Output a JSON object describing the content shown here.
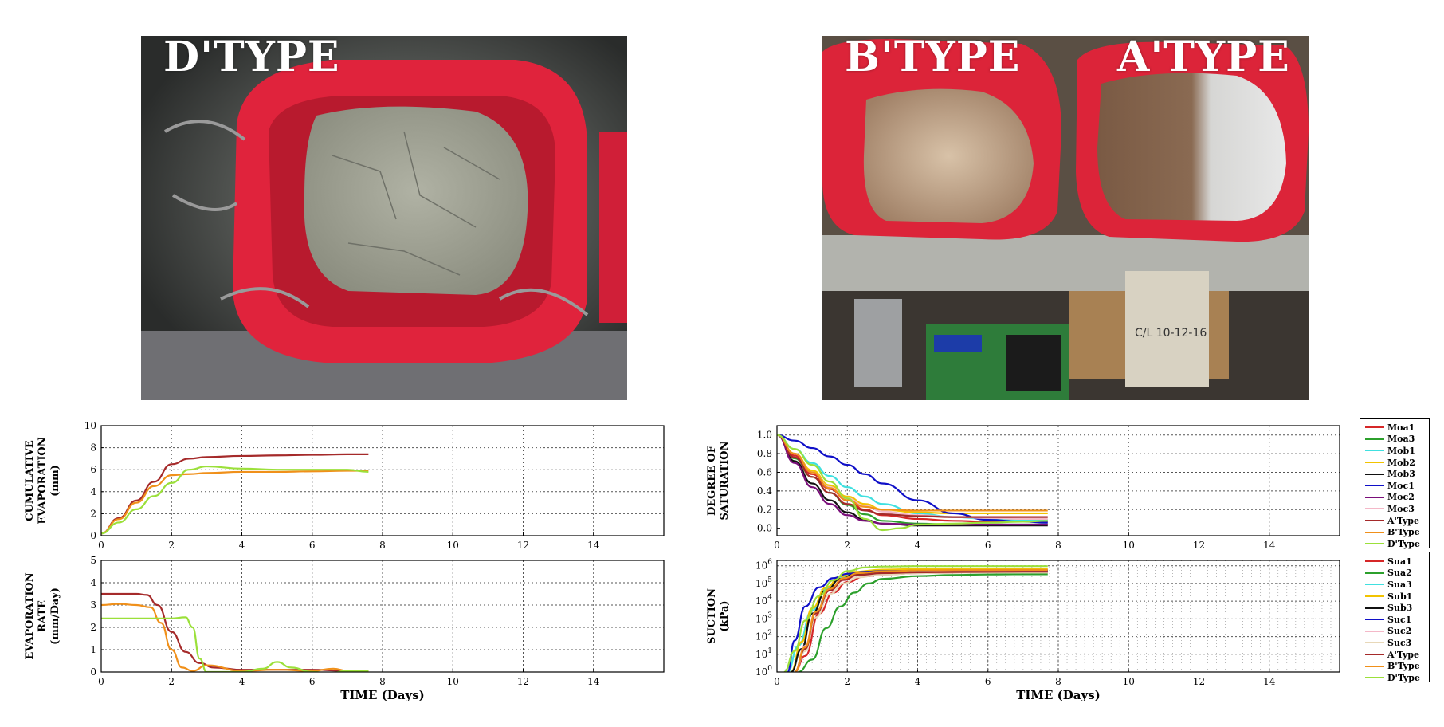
{
  "photos": {
    "left_title": "D'TYPE",
    "right_title_b": "B'TYPE",
    "right_title_a": "A'TYPE",
    "label_text": "C/L  10-12-16"
  },
  "colors": {
    "Moa1": "#d62728",
    "Moa3": "#2ca02c",
    "Mob1": "#40e0e0",
    "Mob2": "#f2c300",
    "Mob3": "#111111",
    "Moc1": "#1010c8",
    "Moc2": "#7a0e7a",
    "Moc3": "#f4b8c8",
    "AType": "#a52a2a",
    "BType": "#f0901a",
    "DType": "#9be03a",
    "Sua1": "#d62728",
    "Sua2": "#2ca02c",
    "Sua3": "#40e0e0",
    "Sub1": "#f2c300",
    "Sub3": "#111111",
    "Suc1": "#1010c8",
    "Suc2": "#f4b8c8",
    "Suc3": "#e8d8b8"
  },
  "chart_data": [
    {
      "id": "cumulative",
      "type": "line",
      "ylabel": [
        "CUMULATIVE",
        "EVAPORATION",
        "(mm)"
      ],
      "xlabel": "",
      "xlim": [
        0,
        16
      ],
      "ylim": [
        0,
        10
      ],
      "xticks": [
        "0",
        "2",
        "4",
        "6",
        "8",
        "10",
        "12",
        "14"
      ],
      "yticks": [
        "0",
        "2",
        "4",
        "6",
        "8",
        "10"
      ],
      "series": [
        {
          "key": "AType",
          "x": [
            0,
            0.5,
            1,
            1.5,
            2,
            2.5,
            3,
            4,
            5,
            6,
            7,
            7.6
          ],
          "y": [
            0.2,
            1.6,
            3.2,
            4.9,
            6.5,
            7.0,
            7.15,
            7.25,
            7.3,
            7.35,
            7.4,
            7.4
          ]
        },
        {
          "key": "BType",
          "x": [
            0,
            0.5,
            1,
            1.5,
            2,
            2.5,
            3,
            4,
            5,
            6,
            7,
            7.6
          ],
          "y": [
            0.2,
            1.5,
            3.0,
            4.5,
            5.5,
            5.6,
            5.7,
            5.8,
            5.8,
            5.85,
            5.9,
            5.9
          ]
        },
        {
          "key": "DType",
          "x": [
            0,
            0.5,
            1,
            1.5,
            2,
            2.5,
            3,
            4,
            5,
            6,
            7,
            7.6
          ],
          "y": [
            0.2,
            1.2,
            2.4,
            3.6,
            4.8,
            6.0,
            6.3,
            6.1,
            6.0,
            6.0,
            6.0,
            5.8
          ]
        }
      ]
    },
    {
      "id": "rate",
      "type": "line",
      "ylabel": [
        "EVAPORATION",
        "RATE",
        "(mm/Day)"
      ],
      "xlabel": "TIME (Days)",
      "xlim": [
        0,
        16
      ],
      "ylim": [
        0,
        5
      ],
      "xticks": [
        "0",
        "2",
        "4",
        "6",
        "8",
        "10",
        "12",
        "14"
      ],
      "yticks": [
        "0",
        "1",
        "2",
        "3",
        "4",
        "5"
      ],
      "series": [
        {
          "key": "AType",
          "x": [
            0,
            0.5,
            1,
            1.3,
            1.6,
            2,
            2.4,
            2.8,
            3.2,
            4,
            5,
            6,
            7,
            7.6
          ],
          "y": [
            3.5,
            3.5,
            3.5,
            3.45,
            3.0,
            1.8,
            0.9,
            0.4,
            0.2,
            0.1,
            0.1,
            0.1,
            0.05,
            0.05
          ]
        },
        {
          "key": "BType",
          "x": [
            0,
            0.5,
            1,
            1.4,
            1.7,
            2,
            2.3,
            2.6,
            3.0,
            4,
            5,
            6,
            6.6,
            7,
            7.6
          ],
          "y": [
            3.0,
            3.05,
            3.0,
            2.9,
            2.2,
            1.0,
            0.2,
            0.05,
            0.3,
            0.05,
            0.1,
            0.05,
            0.15,
            0.05,
            0.05
          ]
        },
        {
          "key": "DType",
          "x": [
            0,
            0.5,
            1,
            1.5,
            2,
            2.4,
            2.6,
            2.8,
            3.0,
            4,
            4.6,
            5,
            5.4,
            6,
            6.5,
            7,
            7.6
          ],
          "y": [
            2.4,
            2.4,
            2.4,
            2.4,
            2.4,
            2.45,
            2.0,
            0.6,
            0.0,
            0.0,
            0.15,
            0.45,
            0.2,
            0.0,
            -0.05,
            0.05,
            0.05
          ]
        }
      ]
    },
    {
      "id": "saturation",
      "type": "line",
      "ylabel": [
        "DEGREE OF",
        "SATURATION"
      ],
      "xlabel": "",
      "xlim": [
        0,
        16
      ],
      "ylim": [
        -0.08,
        1.1
      ],
      "xticks": [
        "0",
        "2",
        "4",
        "6",
        "8",
        "10",
        "12",
        "14"
      ],
      "yticks": [
        "0.0",
        "0.2",
        "0.4",
        "0.6",
        "0.8",
        "1.0"
      ],
      "ytick_values": [
        0,
        0.2,
        0.4,
        0.6,
        0.8,
        1.0
      ],
      "legend": [
        "Moa1",
        "Moa3",
        "Mob1",
        "Mob2",
        "Mob3",
        "Moc1",
        "Moc2",
        "Moc3",
        "A'Type",
        "B'Type",
        "D'Type"
      ],
      "legend_keys": [
        "Moa1",
        "Moa3",
        "Mob1",
        "Mob2",
        "Mob3",
        "Moc1",
        "Moc2",
        "Moc3",
        "AType",
        "BType",
        "DType"
      ],
      "series": [
        {
          "key": "Moa1",
          "x": [
            0,
            0.5,
            1,
            1.5,
            2,
            2.5,
            3,
            4,
            5,
            6,
            7,
            7.7
          ],
          "y": [
            1.0,
            0.78,
            0.58,
            0.42,
            0.3,
            0.2,
            0.14,
            0.1,
            0.08,
            0.07,
            0.07,
            0.07
          ]
        },
        {
          "key": "Moa3",
          "x": [
            0,
            0.5,
            1,
            1.5,
            2,
            2.5,
            3,
            4,
            5,
            6,
            7,
            7.7
          ],
          "y": [
            1.0,
            0.75,
            0.55,
            0.38,
            0.25,
            0.15,
            0.08,
            0.05,
            0.04,
            0.04,
            0.04,
            0.04
          ]
        },
        {
          "key": "Mob1",
          "x": [
            0,
            0.5,
            1,
            1.5,
            2,
            2.5,
            3,
            4,
            5,
            6,
            7,
            7.7
          ],
          "y": [
            1.0,
            0.85,
            0.7,
            0.56,
            0.44,
            0.34,
            0.26,
            0.16,
            0.12,
            0.1,
            0.09,
            0.09
          ]
        },
        {
          "key": "Mob2",
          "x": [
            0,
            0.5,
            1,
            1.5,
            2,
            2.5,
            3,
            4,
            5,
            6,
            7,
            7.7
          ],
          "y": [
            1.0,
            0.8,
            0.62,
            0.46,
            0.34,
            0.26,
            0.2,
            0.17,
            0.16,
            0.16,
            0.16,
            0.16
          ]
        },
        {
          "key": "Mob3",
          "x": [
            0,
            0.5,
            1,
            1.5,
            2,
            2.5,
            3,
            4,
            5,
            6,
            7,
            7.7
          ],
          "y": [
            1.0,
            0.72,
            0.48,
            0.3,
            0.17,
            0.09,
            0.05,
            0.03,
            0.03,
            0.03,
            0.03,
            0.03
          ]
        },
        {
          "key": "Moc1",
          "x": [
            0,
            0.5,
            1,
            1.5,
            2,
            2.5,
            3,
            4,
            5,
            6,
            7,
            7.7
          ],
          "y": [
            1.0,
            0.94,
            0.86,
            0.77,
            0.68,
            0.58,
            0.48,
            0.3,
            0.16,
            0.09,
            0.07,
            0.06
          ]
        },
        {
          "key": "Moc2",
          "x": [
            0,
            0.5,
            1,
            1.5,
            2,
            2.5,
            3,
            4,
            5,
            6,
            7,
            7.7
          ],
          "y": [
            1.0,
            0.7,
            0.44,
            0.26,
            0.14,
            0.08,
            0.05,
            0.04,
            0.04,
            0.04,
            0.04,
            0.04
          ]
        },
        {
          "key": "Moc3",
          "x": [
            0,
            0.5,
            1,
            1.5,
            2,
            2.5,
            3,
            4,
            5,
            6,
            7,
            7.7
          ],
          "y": [
            1.0,
            0.8,
            0.6,
            0.44,
            0.32,
            0.24,
            0.18,
            0.14,
            0.12,
            0.11,
            0.1,
            0.1
          ]
        },
        {
          "key": "AType",
          "x": [
            0,
            0.5,
            1,
            1.5,
            2,
            2.5,
            3,
            4,
            5,
            6,
            7,
            7.7
          ],
          "y": [
            1.0,
            0.76,
            0.55,
            0.38,
            0.26,
            0.19,
            0.15,
            0.13,
            0.12,
            0.12,
            0.12,
            0.12
          ]
        },
        {
          "key": "BType",
          "x": [
            0,
            0.5,
            1,
            1.5,
            2,
            2.5,
            3,
            4,
            5,
            6,
            7,
            7.7
          ],
          "y": [
            1.0,
            0.8,
            0.6,
            0.43,
            0.3,
            0.23,
            0.2,
            0.19,
            0.19,
            0.19,
            0.19,
            0.19
          ]
        },
        {
          "key": "DType",
          "x": [
            0,
            0.5,
            1,
            1.5,
            2,
            2.5,
            3,
            3.5,
            4,
            5,
            6,
            7,
            7.7
          ],
          "y": [
            1.0,
            0.85,
            0.68,
            0.5,
            0.32,
            0.1,
            -0.02,
            0.0,
            0.04,
            0.05,
            0.06,
            0.07,
            0.08
          ]
        }
      ]
    },
    {
      "id": "suction",
      "type": "line",
      "yscale": "log",
      "ylabel": [
        "SUCTION",
        "(kPa)"
      ],
      "xlabel": "TIME (Days)",
      "xlim": [
        0,
        16
      ],
      "ylim": [
        1,
        2000000
      ],
      "xticks": [
        "0",
        "2",
        "4",
        "6",
        "8",
        "10",
        "12",
        "14"
      ],
      "yticks": [
        "10",
        "10",
        "10",
        "10",
        "10",
        "10",
        "10"
      ],
      "ytick_exponents": [
        "0",
        "1",
        "2",
        "3",
        "4",
        "5",
        "6"
      ],
      "legend": [
        "Sua1",
        "Sua2",
        "Sua3",
        "Sub1",
        "Sub3",
        "Suc1",
        "Suc2",
        "Suc3",
        "A'Type",
        "B'Type",
        "D'Type"
      ],
      "legend_keys": [
        "Sua1",
        "Sua2",
        "Sua3",
        "Sub1",
        "Sub3",
        "Suc1",
        "Suc2",
        "Suc3",
        "AType",
        "BType",
        "DType"
      ],
      "series": [
        {
          "key": "Sua1",
          "x": [
            0.5,
            0.8,
            1.2,
            1.6,
            2,
            2.5,
            3,
            4,
            5,
            6,
            7,
            7.7
          ],
          "y": [
            1,
            8,
            2000,
            30000,
            120000,
            250000,
            320000,
            380000,
            400000,
            420000,
            430000,
            430000
          ]
        },
        {
          "key": "Sua2",
          "x": [
            0.6,
            1,
            1.4,
            1.8,
            2.2,
            2.6,
            3,
            4,
            5,
            6,
            7,
            7.7
          ],
          "y": [
            1,
            5,
            300,
            5000,
            30000,
            100000,
            180000,
            260000,
            300000,
            320000,
            330000,
            330000
          ]
        },
        {
          "key": "Sua3",
          "x": [
            0.3,
            0.6,
            1,
            1.4,
            1.8,
            2.2,
            3,
            4,
            5,
            6,
            7,
            7.7
          ],
          "y": [
            1,
            30,
            3000,
            50000,
            200000,
            350000,
            450000,
            500000,
            520000,
            530000,
            540000,
            540000
          ]
        },
        {
          "key": "Sub1",
          "x": [
            0.4,
            0.7,
            1,
            1.4,
            1.8,
            2.2,
            3,
            4,
            5,
            6,
            7,
            7.7
          ],
          "y": [
            1,
            50,
            4000,
            60000,
            250000,
            450000,
            600000,
            650000,
            680000,
            700000,
            700000,
            700000
          ]
        },
        {
          "key": "Sub3",
          "x": [
            0.4,
            0.7,
            1,
            1.4,
            1.8,
            2.2,
            3,
            4,
            5,
            6,
            7,
            7.7
          ],
          "y": [
            1,
            20,
            2000,
            40000,
            180000,
            320000,
            420000,
            460000,
            480000,
            490000,
            500000,
            500000
          ]
        },
        {
          "key": "Suc1",
          "x": [
            0.3,
            0.5,
            0.8,
            1.2,
            1.6,
            2,
            2.5,
            3,
            4,
            5,
            6,
            7,
            7.7
          ],
          "y": [
            1,
            60,
            5000,
            60000,
            200000,
            350000,
            450000,
            500000,
            520000,
            530000,
            540000,
            540000,
            540000
          ]
        },
        {
          "key": "Suc2",
          "x": [
            0.5,
            0.8,
            1.1,
            1.5,
            1.9,
            2.3,
            3,
            4,
            5,
            6,
            7,
            7.7
          ],
          "y": [
            1,
            30,
            2500,
            40000,
            150000,
            280000,
            380000,
            420000,
            440000,
            450000,
            450000,
            450000
          ]
        },
        {
          "key": "Suc3",
          "x": [
            0.5,
            0.8,
            1.1,
            1.5,
            1.9,
            2.3,
            3,
            4,
            5,
            6,
            7,
            7.7
          ],
          "y": [
            1,
            15,
            1200,
            25000,
            100000,
            220000,
            320000,
            380000,
            400000,
            410000,
            410000,
            410000
          ]
        },
        {
          "key": "AType",
          "x": [
            0.5,
            0.8,
            1.1,
            1.5,
            1.9,
            2.3,
            3,
            4,
            5,
            6,
            7,
            7.7
          ],
          "y": [
            1,
            20,
            2000,
            40000,
            160000,
            300000,
            380000,
            420000,
            440000,
            450000,
            460000,
            460000
          ]
        },
        {
          "key": "BType",
          "x": [
            0.5,
            0.8,
            1.1,
            1.5,
            1.9,
            2.3,
            3,
            4,
            5,
            6,
            7,
            7.7
          ],
          "y": [
            1,
            25,
            2500,
            50000,
            200000,
            380000,
            480000,
            540000,
            560000,
            570000,
            580000,
            580000
          ]
        },
        {
          "key": "DType",
          "x": [
            0.2,
            0.5,
            0.8,
            1.2,
            1.6,
            2,
            2.5,
            3,
            4,
            5,
            6,
            7,
            7.7
          ],
          "y": [
            1,
            15,
            800,
            20000,
            150000,
            500000,
            800000,
            900000,
            950000,
            950000,
            950000,
            950000,
            950000
          ]
        }
      ]
    }
  ]
}
